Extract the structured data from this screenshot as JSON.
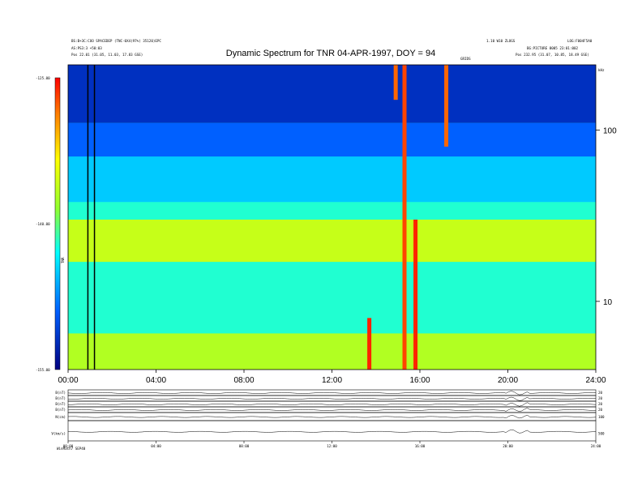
{
  "chart_data": {
    "type": "heatmap",
    "title": "Dynamic Spectrum for TNR 04-APR-1997, DOY = 94",
    "xlabel": "",
    "ylabel": "",
    "x_ticks": [
      "00:00",
      "04:00",
      "08:00",
      "12:00",
      "16:00",
      "20:00",
      "24:00"
    ],
    "xlim_hours": [
      0,
      24
    ],
    "y_axis": {
      "scale": "log",
      "unit": "kHz",
      "ticks": [
        "100",
        "10"
      ],
      "ylim_khz": [
        4,
        240
      ]
    },
    "colorbar": {
      "label": "TNR",
      "ticks": [
        "-125.00",
        "-140.00",
        "-155.00"
      ],
      "range": [
        -155,
        -125
      ]
    },
    "vertical_markers_hours": [
      0.9,
      1.2
    ],
    "layers": [
      {
        "name": "background",
        "y_khz": [
          4,
          240
        ],
        "level": -142
      },
      {
        "name": "low_freq_band",
        "y_khz": [
          4,
          6.5
        ],
        "level": -137
      },
      {
        "name": "upper_yellow_band",
        "y_khz": [
          17,
          30
        ],
        "level": -136
      },
      {
        "name": "cyan_band",
        "y_khz": [
          38,
          70
        ],
        "level": -145
      },
      {
        "name": "light_blue_band",
        "y_khz": [
          70,
          110
        ],
        "level": -149
      },
      {
        "name": "dark_blue_band",
        "y_khz": [
          110,
          240
        ],
        "level": -152
      }
    ],
    "bursts": [
      {
        "t": 13.7,
        "f_khz": [
          4,
          8
        ],
        "level": -126
      },
      {
        "t": 15.3,
        "f_khz": [
          4,
          240
        ],
        "level": -127
      },
      {
        "t": 15.8,
        "f_khz": [
          4,
          30
        ],
        "level": -126
      },
      {
        "t": 17.2,
        "f_khz": [
          80,
          240
        ],
        "level": -128
      },
      {
        "t": 14.9,
        "f_khz": [
          150,
          240
        ],
        "level": -128
      }
    ]
  },
  "header": {
    "left_line1": "BS:B+3C:COO SPACEDEP (TNC-0X4(97%) 35120)EPC",
    "left_line2": "AS:PS3:3 +50:03",
    "left_line3": "Pos 22.01 (31.05, 11.03, 17.83 GSE)",
    "right_line1": "1.10 W10 ZLOGS",
    "right_line2": "LOG:F004F5A0",
    "right_line3": "BG:PICTURE 8005 23:01:002",
    "right_line4": "Pos 232.95 (31.07, 10.85, 18.49 GSE)",
    "center_small": "GRIDS",
    "units": "kHz"
  },
  "bottom_panel": {
    "row_labels": [
      "B(nT)",
      "B(nT)",
      "B(nT)",
      "B(nT)",
      "N(cm)",
      "V(km/s)"
    ],
    "right_labels": [
      "20",
      "20",
      "20",
      "20",
      "100",
      "500"
    ],
    "x_ticks": [
      "00:00",
      "04:00",
      "08:00",
      "12:00",
      "16:00",
      "20:00",
      "24:00"
    ],
    "footer": "WinMath7 SEP40"
  }
}
